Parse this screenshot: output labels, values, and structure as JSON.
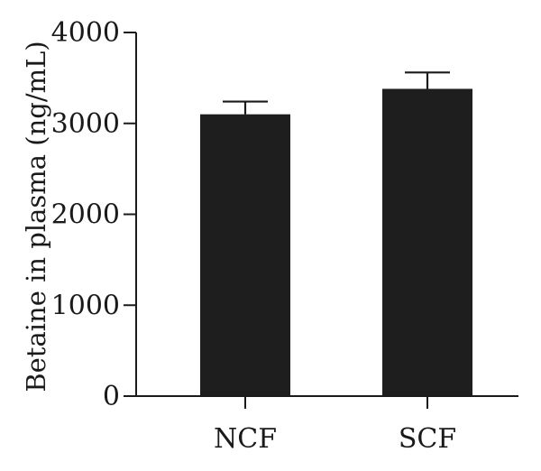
{
  "chart_data": {
    "type": "bar",
    "categories": [
      "NCF",
      "SCF"
    ],
    "values": [
      3100,
      3380
    ],
    "error": [
      140,
      180
    ],
    "ylabel": "Betaine in plasma (ng/mL)",
    "xlabel": "",
    "ylim": [
      0,
      4000
    ],
    "yticks": [
      0,
      1000,
      2000,
      3000,
      4000
    ],
    "ytick_labels": [
      "0",
      "1000",
      "2000",
      "3000",
      "4000"
    ],
    "grid": false,
    "bar_color": "#1e1e1e",
    "axis_color": "#1a1a1a"
  }
}
